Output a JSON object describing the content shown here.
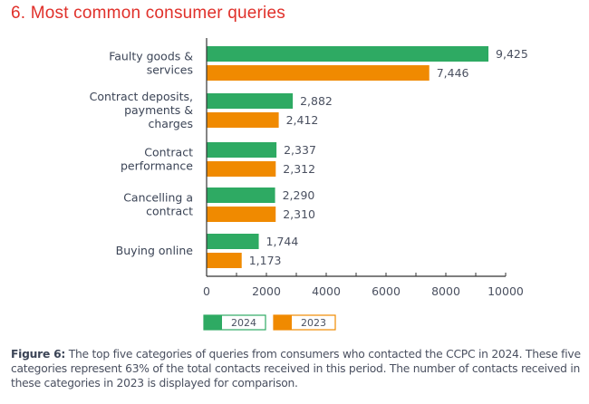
{
  "title": "6. Most common consumer queries",
  "chart_data": {
    "type": "bar",
    "orientation": "horizontal",
    "categories": [
      [
        "Faulty goods &",
        "services"
      ],
      [
        "Contract deposits,",
        "payments &",
        "charges"
      ],
      [
        "Contract",
        "performance"
      ],
      [
        "Cancelling a",
        "contract"
      ],
      [
        "Buying online"
      ]
    ],
    "series": [
      {
        "name": "2024",
        "color": "#2eaa63",
        "values": [
          9425,
          2882,
          2337,
          2290,
          1744
        ],
        "labels": [
          "9,425",
          "2,882",
          "2,337",
          "2,290",
          "1,744"
        ]
      },
      {
        "name": "2023",
        "color": "#f08a00",
        "values": [
          7446,
          2412,
          2312,
          2310,
          1173
        ],
        "labels": [
          "7,446",
          "2,412",
          "2,312",
          "2,310",
          "1,173"
        ]
      }
    ],
    "xlim": [
      0,
      10000
    ],
    "xticks": [
      "0",
      "2000",
      "4000",
      "6000",
      "8000",
      "10000"
    ],
    "grid": false,
    "legend_placement": "bottom"
  },
  "caption": {
    "label": "Figure 6:",
    "text": " The top five categories of queries from consumers who contacted the CCPC in 2024. These five categories represent 63% of the total contacts received in this period. The number of contacts received in these categories in 2023 is displayed for comparison."
  }
}
